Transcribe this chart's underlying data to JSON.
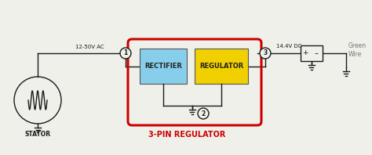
{
  "bg_color": "#f0f0eb",
  "title": "3-PIN REGULATOR",
  "title_color": "#cc0000",
  "rectifier_color": "#87ceeb",
  "regulator_color": "#f0d000",
  "box_outline_color": "#cc0000",
  "wire_color": "#1a1a1a",
  "green_wire_color": "#888888",
  "label_12v": "12-50V AC",
  "label_144v": "14.4V DC",
  "label_stator": "STATOR",
  "label_green": "Green\nWire",
  "label_rectifier": "RECTIFIER",
  "label_regulator": "REGULATOR",
  "pin1_label": "1",
  "pin2_label": "2",
  "pin3_label": "3"
}
